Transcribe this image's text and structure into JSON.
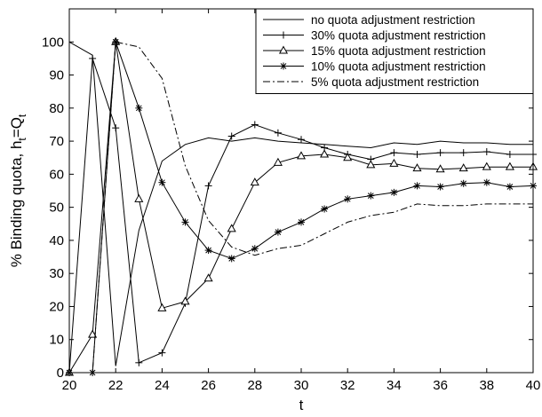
{
  "chart_data": {
    "type": "line",
    "title": "",
    "xlabel": "t",
    "ylabel_main": "% Binding quota, h",
    "ylabel_sub1": "t",
    "ylabel_eq": "=Q",
    "ylabel_sub2": "t",
    "xlim": [
      20,
      40
    ],
    "ylim": [
      0,
      110
    ],
    "xticks": [
      "20",
      "22",
      "24",
      "26",
      "28",
      "30",
      "32",
      "34",
      "36",
      "38",
      "40"
    ],
    "yticks": [
      "0",
      "10",
      "20",
      "30",
      "40",
      "50",
      "60",
      "70",
      "80",
      "90",
      "100"
    ],
    "grid": false,
    "legend_position": "top-right",
    "series": [
      {
        "name": "no quota adjustment restriction",
        "marker": "none",
        "dash": "solid",
        "x": [
          20,
          21,
          22,
          23,
          24,
          25,
          26,
          27,
          28,
          29,
          30,
          31,
          32,
          33,
          34,
          35,
          36,
          37,
          38,
          39,
          40
        ],
        "y": [
          100,
          96,
          2,
          43,
          64,
          69,
          71,
          70,
          71,
          70,
          69.5,
          69,
          68.5,
          68,
          69.5,
          69,
          70,
          69.5,
          69.5,
          69,
          69
        ]
      },
      {
        "name": "30% quota adjustment restriction",
        "marker": "plus",
        "dash": "solid",
        "x": [
          20,
          21,
          22,
          23,
          24,
          25,
          26,
          27,
          28,
          29,
          30,
          31,
          32,
          33,
          34,
          35,
          36,
          37,
          38,
          39,
          40
        ],
        "y": [
          0,
          95,
          74,
          3,
          6,
          21,
          56.5,
          71.5,
          75,
          72.5,
          70.5,
          68,
          66,
          64.5,
          66.5,
          66,
          66.5,
          66.5,
          66.8,
          66,
          66
        ]
      },
      {
        "name": "15% quota adjustment restriction",
        "marker": "triangle",
        "dash": "solid",
        "x": [
          20,
          21,
          22,
          23,
          24,
          25,
          26,
          27,
          28,
          29,
          30,
          31,
          32,
          33,
          34,
          35,
          36,
          37,
          38,
          39,
          40
        ],
        "y": [
          0,
          11.5,
          100,
          52.5,
          19.5,
          21.5,
          28.5,
          43.5,
          57.5,
          63.5,
          65.5,
          66,
          65,
          62.8,
          63.2,
          61.8,
          61.5,
          61.8,
          62.2,
          62.2,
          62.2
        ]
      },
      {
        "name": "10% quota adjustment restriction",
        "marker": "star",
        "dash": "solid",
        "x": [
          20,
          21,
          22,
          23,
          24,
          25,
          26,
          27,
          28,
          29,
          30,
          31,
          32,
          33,
          34,
          35,
          36,
          37,
          38,
          39,
          40
        ],
        "y": [
          0,
          0,
          100,
          80,
          57.5,
          45.5,
          37,
          34.5,
          37.5,
          42.5,
          45.5,
          49.5,
          52.5,
          53.5,
          54.5,
          56.5,
          56.2,
          57.2,
          57.5,
          56.2,
          56.5
        ]
      },
      {
        "name": "5% quota adjustment restriction",
        "marker": "none",
        "dash": "dashdot",
        "x": [
          20,
          21,
          22,
          23,
          24,
          25,
          26,
          27,
          28,
          29,
          30,
          31,
          32,
          33,
          34,
          35,
          36,
          37,
          38,
          39,
          40
        ],
        "y": [
          0,
          0,
          100,
          98.5,
          89,
          62.5,
          46,
          38,
          35.5,
          37.5,
          38.5,
          42,
          45.5,
          47.5,
          48.5,
          51,
          50.5,
          50.5,
          51,
          51,
          51
        ]
      }
    ]
  }
}
